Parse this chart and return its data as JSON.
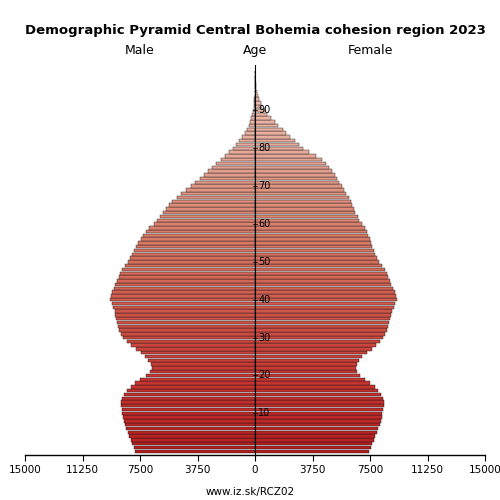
{
  "title": "Demographic Pyramid Central Bohemia cohesion region 2023",
  "label_male": "Male",
  "label_female": "Female",
  "label_age": "Age",
  "source": "www.iz.sk/RCZ02",
  "xlim": 15000,
  "ages": [
    0,
    1,
    2,
    3,
    4,
    5,
    6,
    7,
    8,
    9,
    10,
    11,
    12,
    13,
    14,
    15,
    16,
    17,
    18,
    19,
    20,
    21,
    22,
    23,
    24,
    25,
    26,
    27,
    28,
    29,
    30,
    31,
    32,
    33,
    34,
    35,
    36,
    37,
    38,
    39,
    40,
    41,
    42,
    43,
    44,
    45,
    46,
    47,
    48,
    49,
    50,
    51,
    52,
    53,
    54,
    55,
    56,
    57,
    58,
    59,
    60,
    61,
    62,
    63,
    64,
    65,
    66,
    67,
    68,
    69,
    70,
    71,
    72,
    73,
    74,
    75,
    76,
    77,
    78,
    79,
    80,
    81,
    82,
    83,
    84,
    85,
    86,
    87,
    88,
    89,
    90,
    91,
    92,
    93,
    94,
    95,
    96,
    97,
    98,
    99,
    100
  ],
  "male": [
    7800,
    7900,
    8000,
    8100,
    8200,
    8300,
    8400,
    8500,
    8550,
    8600,
    8650,
    8700,
    8750,
    8750,
    8700,
    8550,
    8350,
    8100,
    7800,
    7500,
    7100,
    6850,
    6750,
    6800,
    6950,
    7150,
    7450,
    7750,
    8100,
    8350,
    8600,
    8750,
    8850,
    8950,
    9000,
    9050,
    9100,
    9150,
    9250,
    9350,
    9450,
    9400,
    9300,
    9200,
    9100,
    9000,
    8900,
    8800,
    8650,
    8500,
    8300,
    8150,
    8000,
    7900,
    7750,
    7600,
    7450,
    7300,
    7100,
    6900,
    6600,
    6400,
    6200,
    6000,
    5800,
    5600,
    5400,
    5100,
    4800,
    4500,
    4200,
    3900,
    3600,
    3350,
    3050,
    2800,
    2550,
    2250,
    1950,
    1700,
    1450,
    1250,
    1050,
    860,
    680,
    540,
    410,
    310,
    230,
    165,
    115,
    78,
    52,
    33,
    20,
    12,
    7,
    4,
    2,
    1,
    0
  ],
  "female": [
    7450,
    7550,
    7650,
    7750,
    7850,
    7950,
    8050,
    8150,
    8200,
    8250,
    8300,
    8350,
    8400,
    8400,
    8350,
    8200,
    8000,
    7800,
    7500,
    7150,
    6850,
    6650,
    6600,
    6650,
    6800,
    7000,
    7300,
    7600,
    7900,
    8150,
    8350,
    8500,
    8600,
    8700,
    8750,
    8800,
    8850,
    8950,
    9050,
    9150,
    9250,
    9200,
    9100,
    9000,
    8900,
    8800,
    8700,
    8600,
    8450,
    8300,
    8100,
    7950,
    7850,
    7750,
    7650,
    7550,
    7500,
    7400,
    7300,
    7150,
    6950,
    6800,
    6700,
    6550,
    6450,
    6350,
    6250,
    6100,
    5950,
    5800,
    5650,
    5500,
    5350,
    5200,
    5050,
    4850,
    4650,
    4400,
    4000,
    3550,
    3150,
    2850,
    2600,
    2300,
    2050,
    1800,
    1530,
    1280,
    1040,
    810,
    630,
    480,
    360,
    265,
    190,
    130,
    85,
    52,
    30,
    16,
    8
  ],
  "age_ticks": [
    10,
    20,
    30,
    40,
    50,
    60,
    70,
    80,
    90
  ],
  "xtick_vals": [
    -15000,
    -11250,
    -7500,
    -3750,
    0,
    3750,
    7500,
    11250,
    15000
  ],
  "xtick_labels": [
    "15000",
    "11250",
    "7500",
    "3750",
    "0",
    "3750",
    "7500",
    "11250",
    "15000"
  ],
  "color_young": "#c0392b",
  "color_mid": "#d4796a",
  "color_old": "#e8b4aa",
  "color_veryold": "#ead5cc",
  "edge_color": "#1a1a1a",
  "background": "#ffffff"
}
